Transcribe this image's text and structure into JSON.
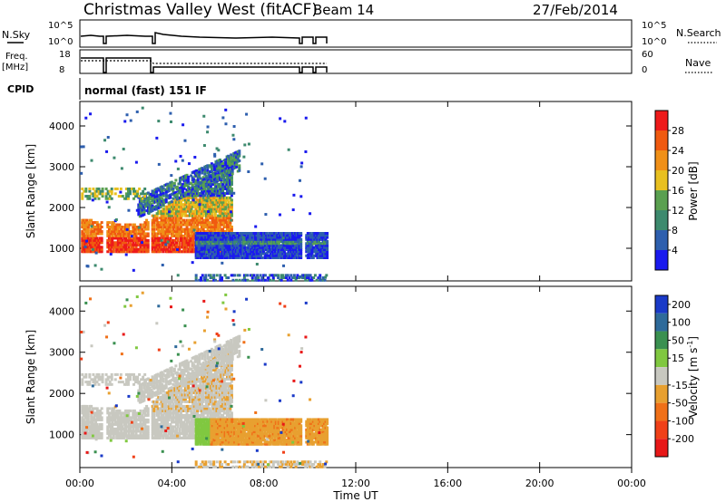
{
  "header": {
    "title": "Christmas Valley West (fitACF)",
    "beam": "Beam 14",
    "date": "27/Feb/2014"
  },
  "param_panels": {
    "nsky_label": "N.Sky",
    "nsky_ticks": [
      "10^5",
      "10^0"
    ],
    "nsky_right_ticks": [
      "10^5",
      "10^0"
    ],
    "nsearch_label": "N.Search",
    "freq_label": "Freq.",
    "freq_unit": "[MHz]",
    "freq_ticks": [
      "18",
      "8"
    ],
    "nave_ticks": [
      "60",
      "0"
    ],
    "nave_label": "Nave",
    "cpid_label": "CPID",
    "cpid_text": "normal (fast) 151 IF"
  },
  "chart_data": [
    {
      "type": "heatmap",
      "name": "power",
      "ylabel": "Slant Range [km]",
      "yticks": [
        1000,
        2000,
        3000,
        4000
      ],
      "ylim": [
        200,
        4600
      ],
      "xlim": [
        0,
        24
      ],
      "colorbar_label": "Power [dB]",
      "colorbar_ticks": [
        "4",
        "8",
        "12",
        "16",
        "20",
        "24",
        "28"
      ],
      "colors": [
        "#1a1aee",
        "#2e5fae",
        "#3d8a6e",
        "#5aa050",
        "#e8c020",
        "#f09018",
        "#f05a10",
        "#ee1a1a"
      ]
    },
    {
      "type": "heatmap",
      "name": "velocity",
      "ylabel": "Slant Range [km]",
      "yticks": [
        1000,
        2000,
        3000,
        4000
      ],
      "ylim": [
        200,
        4600
      ],
      "xlim": [
        0,
        24
      ],
      "colorbar_label": "Velocity [m s",
      "colorbar_sup": "-1",
      "colorbar_close": "]",
      "colorbar_ticks": [
        "200",
        "100",
        "50",
        "15",
        "-15",
        "-50",
        "-100",
        "-200"
      ],
      "colors": [
        "#1a3ac8",
        "#2e6a9a",
        "#3a9050",
        "#80c840",
        "#c8c8c0",
        "#e8a030",
        "#f07018",
        "#f04018",
        "#e81818"
      ]
    }
  ],
  "x_axis": {
    "ticks": [
      "00:00",
      "04:00",
      "08:00",
      "12:00",
      "16:00",
      "20:00",
      "00:00"
    ],
    "label": "Time UT"
  }
}
